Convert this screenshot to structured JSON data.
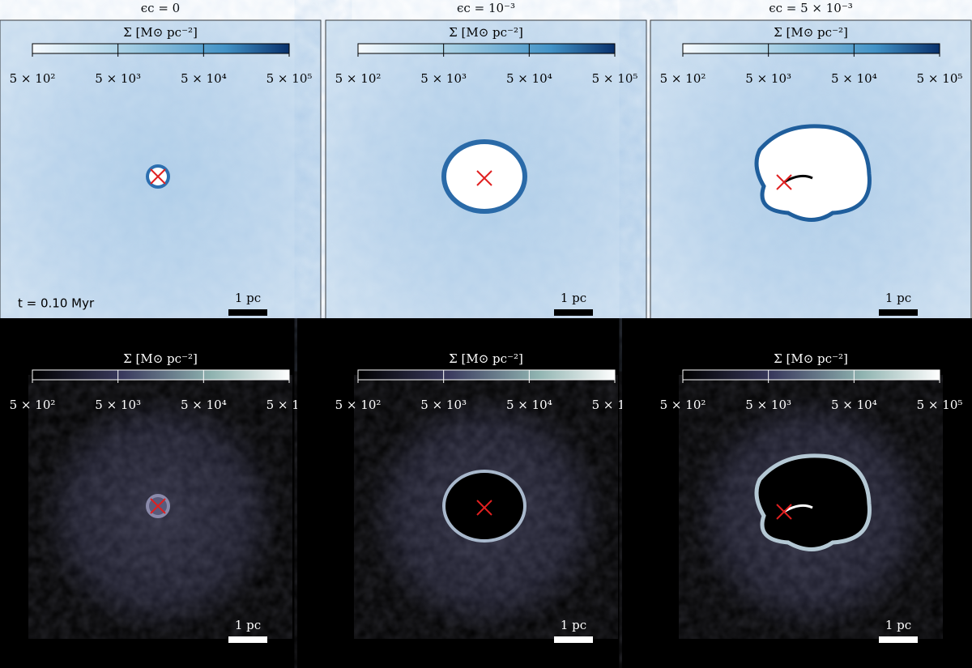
{
  "columns": [
    {
      "title": "ϵc = 0"
    },
    {
      "title": "ϵc = 10⁻³"
    },
    {
      "title": "ϵc = 5 × 10⁻³"
    }
  ],
  "colorbar": {
    "label": "Σ [M⊙ pc⁻²]",
    "ticks": [
      "5 × 10²",
      "5 × 10³",
      "5 × 10⁴",
      "5 × 10⁵"
    ]
  },
  "time_label": "t = 0.10 Myr",
  "scale_bar": "1 pc"
}
